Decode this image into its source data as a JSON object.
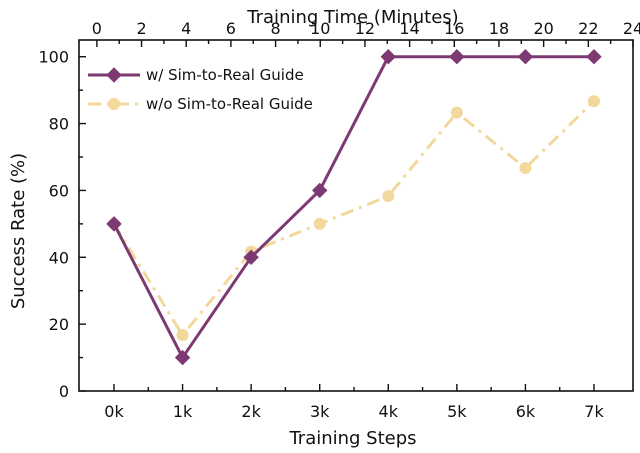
{
  "chart_data": {
    "type": "line",
    "xlabel": "Training Steps",
    "ylabel": "Success Rate (%)",
    "x2label": "Training Time (Minutes)",
    "categories": [
      "0k",
      "1k",
      "2k",
      "3k",
      "4k",
      "5k",
      "6k",
      "7k"
    ],
    "ylim": [
      0,
      105
    ],
    "yticks": [
      0,
      20,
      40,
      60,
      80,
      100
    ],
    "x2lim": [
      -0.8,
      24
    ],
    "x2ticks": [
      0,
      2,
      4,
      6,
      8,
      10,
      12,
      14,
      16,
      18,
      20,
      22,
      24
    ],
    "grid": false,
    "legend_position": "top-left",
    "series": [
      {
        "name": "w/ Sim-to-Real Guide",
        "values": [
          50,
          10,
          40,
          60,
          100,
          100,
          100,
          100
        ],
        "color": "#7d3a72",
        "marker": "diamond",
        "line_style": "solid"
      },
      {
        "name": "w/o Sim-to-Real Guide",
        "values": [
          50,
          16.7,
          41.7,
          50,
          58.3,
          83.3,
          66.7,
          86.7
        ],
        "color": "#f2d99b",
        "marker": "circle",
        "line_style": "dash-dot"
      }
    ]
  }
}
